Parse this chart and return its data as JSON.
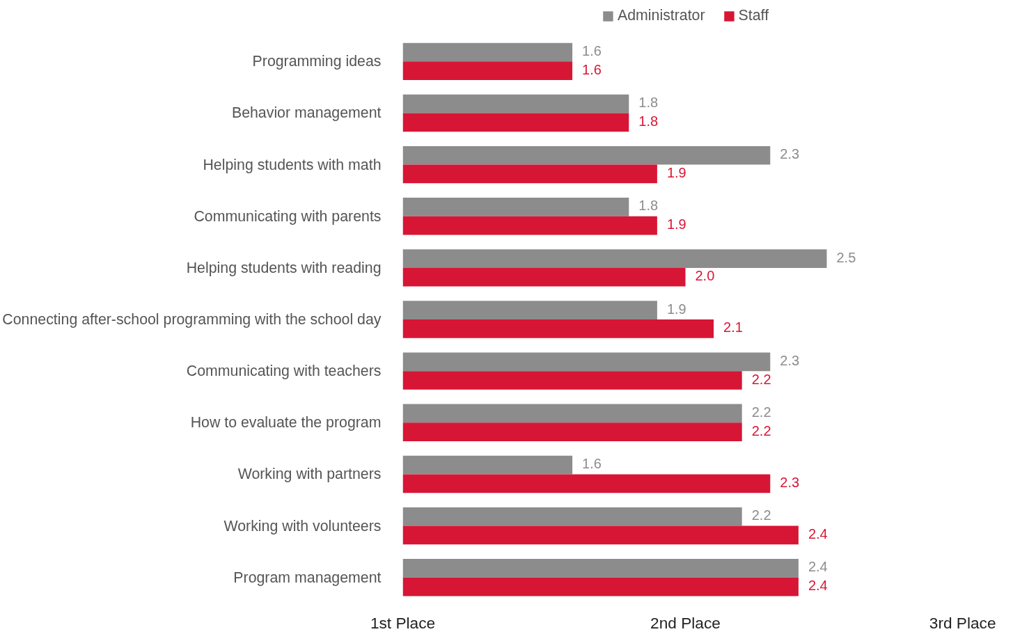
{
  "chart_data": {
    "type": "bar",
    "orientation": "horizontal",
    "categories": [
      "Programming ideas",
      "Behavior management",
      "Helping students with math",
      "Communicating with parents",
      "Helping students with reading",
      "Connecting after-school programming with the school day",
      "Communicating with teachers",
      "How to evaluate the program",
      "Working with partners",
      "Working with volunteers",
      "Program management"
    ],
    "series": [
      {
        "name": "Administrator",
        "color": "#8c8c8c",
        "values": [
          1.6,
          1.8,
          2.3,
          1.8,
          2.5,
          1.9,
          2.3,
          2.2,
          1.6,
          2.2,
          2.4
        ],
        "value_labels": [
          "1.6",
          "1.8",
          "2.3",
          "1.8",
          "2.5",
          "1.9",
          "2.3",
          "2.2",
          "1.6",
          "2.2",
          "2.4"
        ]
      },
      {
        "name": "Staff",
        "color": "#d71635",
        "values": [
          1.6,
          1.8,
          1.9,
          1.9,
          2.0,
          2.1,
          2.2,
          2.2,
          2.3,
          2.4,
          2.4
        ],
        "value_labels": [
          "1.6",
          "1.8",
          "1.9",
          "1.9",
          "2.0",
          "2.1",
          "2.2",
          "2.2",
          "2.3",
          "2.4",
          "2.4"
        ]
      }
    ],
    "xlim": [
      1,
      3
    ],
    "xticks": [
      {
        "value": 1,
        "label": "1st Place"
      },
      {
        "value": 2,
        "label": "2nd Place"
      },
      {
        "value": 3,
        "label": "3rd Place"
      }
    ],
    "grid": false,
    "legend": "top"
  }
}
